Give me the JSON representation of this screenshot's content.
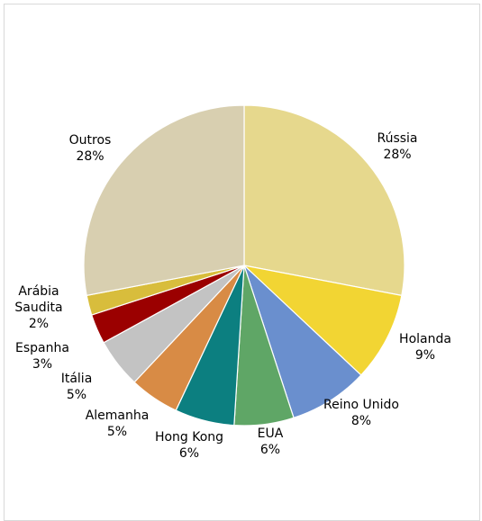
{
  "chart_data": {
    "type": "pie",
    "title": "",
    "slices": [
      {
        "name": "Rússia",
        "label": "28%",
        "value": 28,
        "color": "#e6d88d"
      },
      {
        "name": "Holanda",
        "label": "9%",
        "value": 9,
        "color": "#f2d533"
      },
      {
        "name": "Reino Unido",
        "label": "8%",
        "value": 8,
        "color": "#6a8fce"
      },
      {
        "name": "EUA",
        "label": "6%",
        "value": 6,
        "color": "#5fa666"
      },
      {
        "name": "Hong Kong",
        "label": "6%",
        "value": 6,
        "color": "#0c7f80"
      },
      {
        "name": "Alemanha",
        "label": "5%",
        "value": 5,
        "color": "#d88b45"
      },
      {
        "name": "Itália",
        "label": "5%",
        "value": 5,
        "color": "#c3c3c3"
      },
      {
        "name": "Espanha",
        "label": "3%",
        "value": 3,
        "color": "#9b0000"
      },
      {
        "name": "Arábia\nSaudita",
        "label": "2%",
        "value": 2,
        "color": "#d8bd3c"
      },
      {
        "name": "Outros",
        "label": "28%",
        "value": 28,
        "color": "#d8cfb0"
      }
    ]
  }
}
